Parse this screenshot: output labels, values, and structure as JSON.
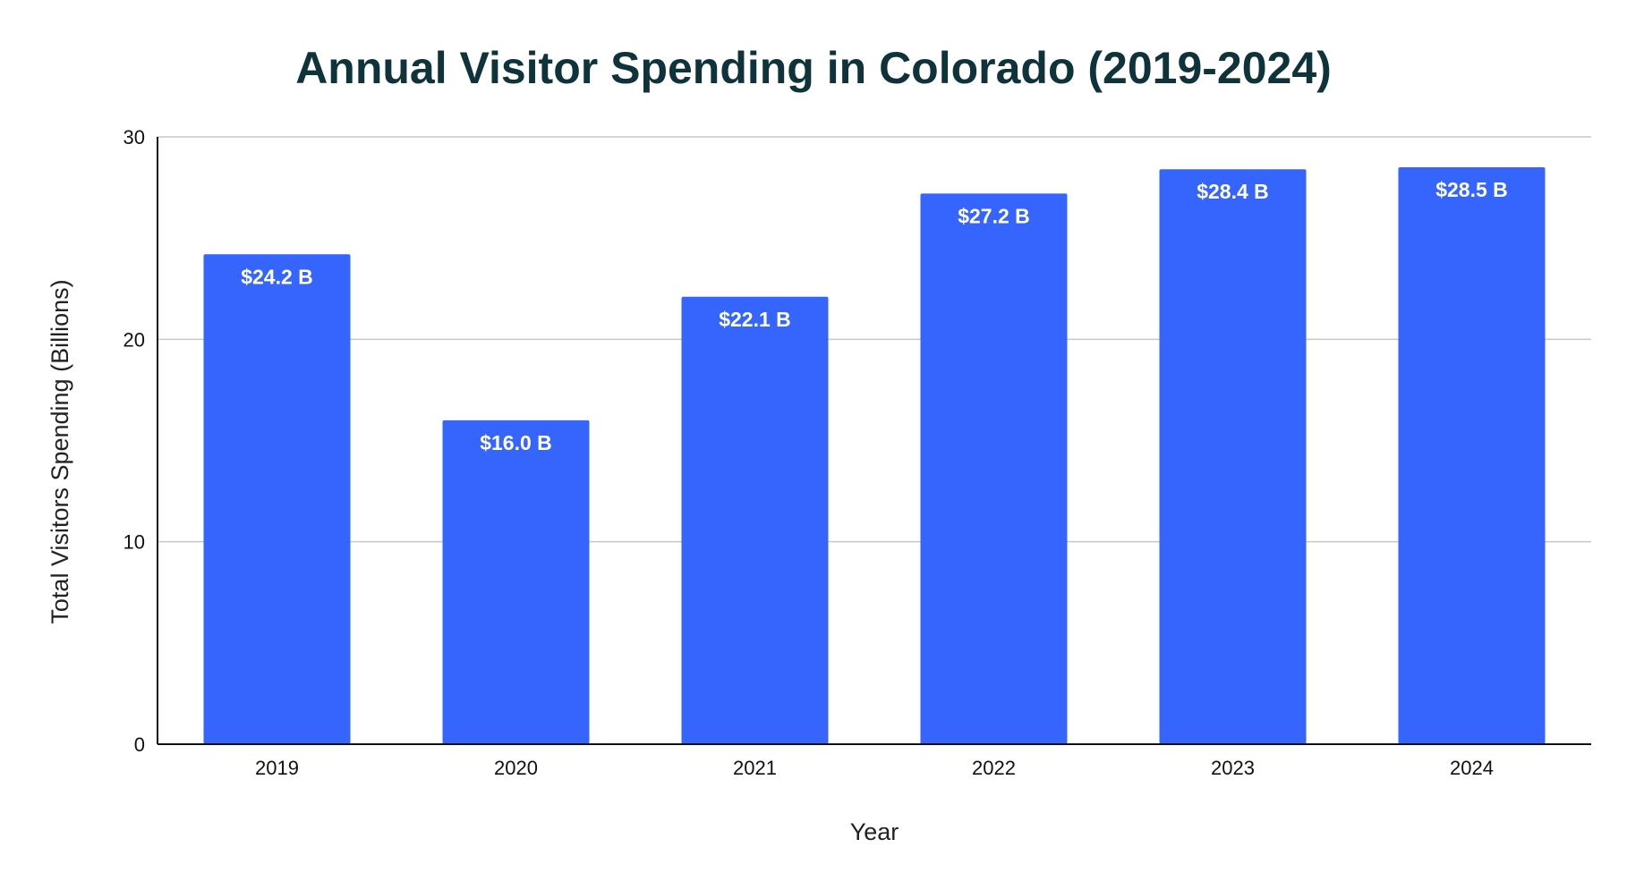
{
  "chart_data": {
    "type": "bar",
    "title": "Annual Visitor Spending in Colorado (2019-2024)",
    "xlabel": "Year",
    "ylabel": "Total Visitors Spending (Billions)",
    "categories": [
      "2019",
      "2020",
      "2021",
      "2022",
      "2023",
      "2024"
    ],
    "values": [
      24.2,
      16.0,
      22.1,
      27.2,
      28.4,
      28.5
    ],
    "data_labels": [
      "$24.2 B",
      "$16.0 B",
      "$22.1 B",
      "$27.2 B",
      "$28.4 B",
      "$28.5 B"
    ],
    "ylim": [
      0,
      30
    ],
    "yticks": [
      0,
      10,
      20,
      30
    ],
    "grid": true,
    "legend": "none",
    "colors": {
      "bar": "#3565fd",
      "title": "#0f333a"
    }
  }
}
